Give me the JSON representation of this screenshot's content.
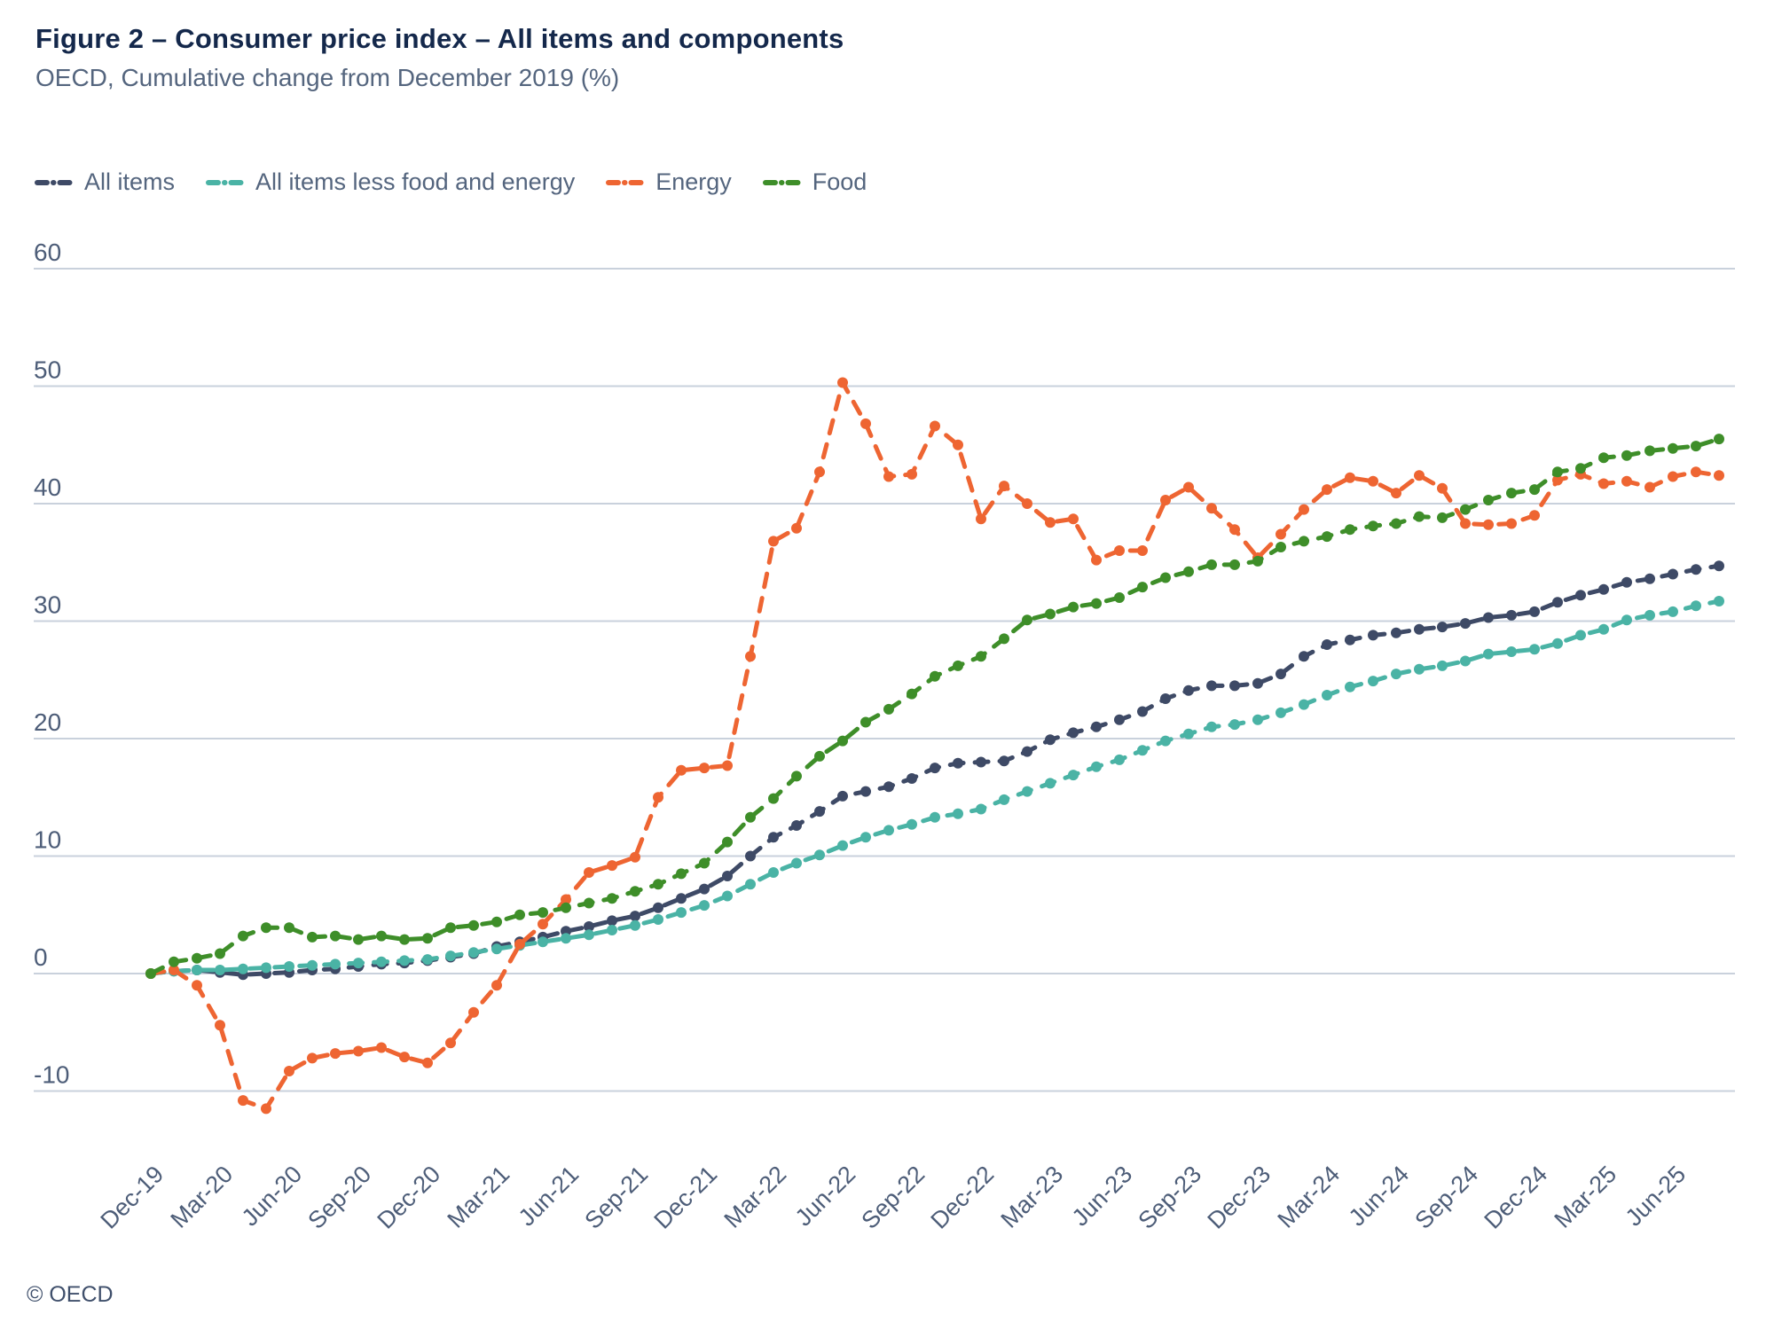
{
  "header": {
    "title": "Figure 2 – Consumer price index – All items and components",
    "subtitle": "OECD, Cumulative change from December 2019 (%)"
  },
  "footer": {
    "copyright": "© OECD"
  },
  "colors": {
    "all_items": "#3e4a66",
    "core": "#4ab3a5",
    "energy": "#ee6532",
    "food": "#3e8e29",
    "title_text": "#14284b",
    "body_text": "#54657e",
    "axis_text": "#4d5d78",
    "gridline": "#c9d1dc",
    "background": "#ffffff"
  },
  "chart_data": {
    "type": "line",
    "title": "Consumer price index – All items and components",
    "subtitle": "OECD, Cumulative change from December 2019 (%)",
    "x_unit": "month",
    "x_start": "Dec-19",
    "x_end": "Aug-25",
    "grid": "horizontal",
    "legend_position": "top-left",
    "y_ticks": [
      60,
      50,
      40,
      30,
      20,
      10,
      0,
      -10
    ],
    "ylim": [
      -13,
      60
    ],
    "x_tick_labels": [
      "Dec-19",
      "Mar-20",
      "Jun-20",
      "Sep-20",
      "Dec-20",
      "Mar-21",
      "Jun-21",
      "Sep-21",
      "Dec-21",
      "Mar-22",
      "Jun-22",
      "Sep-22",
      "Dec-22",
      "Mar-23",
      "Jun-23",
      "Sep-23",
      "Dec-23",
      "Mar-24",
      "Jun-24",
      "Sep-24",
      "Dec-24",
      "Mar-25",
      "Jun-25"
    ],
    "series": [
      {
        "name": "All items",
        "color_key": "all_items",
        "values": [
          0,
          0.2,
          0.3,
          0.1,
          -0.1,
          0,
          0.1,
          0.3,
          0.4,
          0.6,
          0.8,
          0.9,
          1.1,
          1.4,
          1.7,
          2.3,
          2.7,
          3.1,
          3.6,
          4,
          4.5,
          4.9,
          5.6,
          6.4,
          7.2,
          8.3,
          10,
          11.6,
          12.6,
          13.8,
          15.1,
          15.5,
          15.9,
          16.6,
          17.5,
          17.9,
          18,
          18.1,
          18.9,
          19.9,
          20.5,
          21,
          21.6,
          22.3,
          23.4,
          24.1,
          24.5,
          24.5,
          24.7,
          25.5,
          27,
          28,
          28.4,
          28.8,
          29,
          29.3,
          29.5,
          29.8,
          30.3,
          30.5,
          30.8,
          31.6,
          32.2,
          32.7,
          33.3,
          33.6,
          34,
          34.4,
          34.7
        ]
      },
      {
        "name": "All items less food and energy",
        "color_key": "core",
        "values": [
          0,
          0.2,
          0.3,
          0.3,
          0.4,
          0.5,
          0.6,
          0.7,
          0.8,
          0.9,
          1,
          1.1,
          1.2,
          1.5,
          1.8,
          2.1,
          2.4,
          2.7,
          3,
          3.3,
          3.7,
          4.1,
          4.6,
          5.2,
          5.8,
          6.6,
          7.6,
          8.6,
          9.4,
          10.1,
          10.9,
          11.6,
          12.2,
          12.7,
          13.3,
          13.6,
          14,
          14.8,
          15.5,
          16.2,
          16.9,
          17.6,
          18.2,
          19,
          19.8,
          20.4,
          21,
          21.2,
          21.6,
          22.2,
          22.9,
          23.7,
          24.4,
          24.9,
          25.5,
          25.9,
          26.2,
          26.6,
          27.2,
          27.4,
          27.6,
          28.1,
          28.8,
          29.3,
          30.1,
          30.5,
          30.8,
          31.3,
          31.7
        ]
      },
      {
        "name": "Energy",
        "color_key": "energy",
        "values": [
          0,
          0.3,
          -1,
          -4.4,
          -10.8,
          -11.5,
          -8.3,
          -7.2,
          -6.8,
          -6.6,
          -6.3,
          -7.1,
          -7.6,
          -5.9,
          -3.3,
          -1,
          2.5,
          4.2,
          6.3,
          8.6,
          9.2,
          9.9,
          15,
          17.3,
          17.5,
          17.7,
          27,
          36.8,
          37.9,
          42.7,
          50.3,
          46.8,
          42.3,
          42.5,
          46.6,
          45,
          38.7,
          41.5,
          40,
          38.4,
          38.7,
          35.2,
          36,
          36,
          40.3,
          41.4,
          39.6,
          37.8,
          35.4,
          37.4,
          39.5,
          41.2,
          42.2,
          41.9,
          40.9,
          42.4,
          41.3,
          38.3,
          38.2,
          38.3,
          39,
          42,
          42.5,
          41.7,
          41.9,
          41.4,
          42.3,
          42.7,
          42.4
        ]
      },
      {
        "name": "Food",
        "color_key": "food",
        "values": [
          0,
          1,
          1.3,
          1.7,
          3.2,
          3.9,
          3.9,
          3.1,
          3.2,
          2.9,
          3.2,
          2.9,
          3,
          3.9,
          4.1,
          4.4,
          5,
          5.2,
          5.6,
          6,
          6.4,
          7,
          7.6,
          8.5,
          9.4,
          11.2,
          13.3,
          14.9,
          16.8,
          18.5,
          19.8,
          21.4,
          22.5,
          23.8,
          25.3,
          26.2,
          27,
          28.5,
          30.1,
          30.6,
          31.2,
          31.5,
          32,
          32.9,
          33.7,
          34.2,
          34.8,
          34.8,
          35.1,
          36.3,
          36.8,
          37.2,
          37.8,
          38.1,
          38.3,
          38.9,
          38.8,
          39.5,
          40.3,
          40.9,
          41.2,
          42.7,
          43,
          43.9,
          44.1,
          44.5,
          44.7,
          44.9,
          45.5
        ]
      }
    ]
  }
}
